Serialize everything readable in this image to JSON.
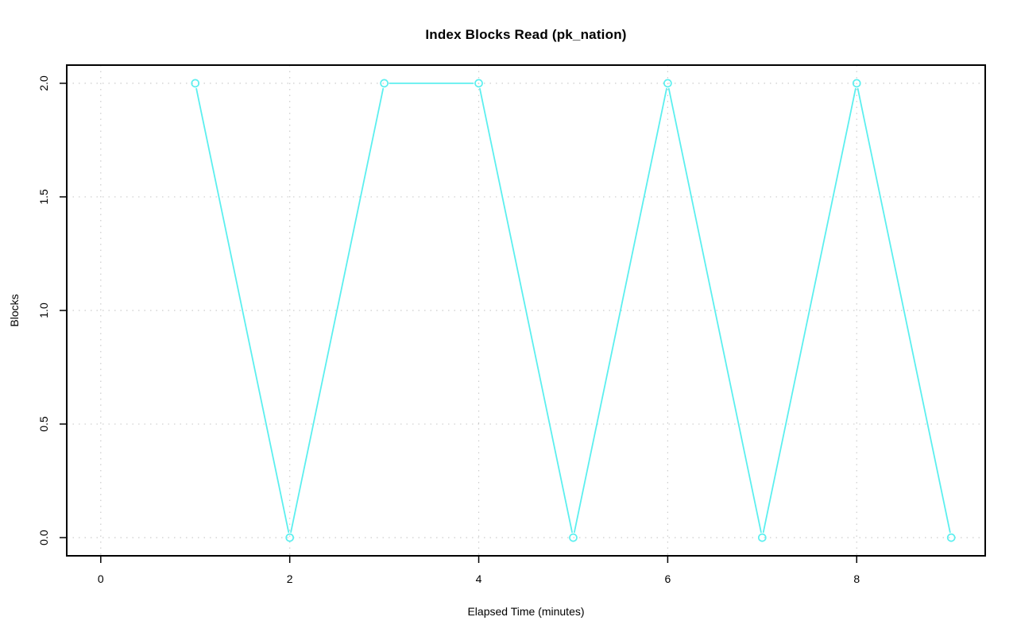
{
  "chart_data": {
    "type": "line",
    "title": "Index Blocks Read (pk_nation)",
    "xlabel": "Elapsed Time (minutes)",
    "ylabel": "Blocks",
    "x": [
      1,
      2,
      3,
      4,
      5,
      6,
      7,
      8,
      9
    ],
    "y": [
      2,
      0,
      2,
      2,
      0,
      2,
      0,
      2,
      0
    ],
    "xlim": [
      -0.36,
      9.36
    ],
    "ylim": [
      -0.08,
      2.08
    ],
    "x_ticks": [
      {
        "value": 0,
        "label": "0"
      },
      {
        "value": 2,
        "label": "2"
      },
      {
        "value": 4,
        "label": "4"
      },
      {
        "value": 6,
        "label": "6"
      },
      {
        "value": 8,
        "label": "8"
      }
    ],
    "y_ticks": [
      {
        "value": 0.0,
        "label": "0.0"
      },
      {
        "value": 0.5,
        "label": "0.5"
      },
      {
        "value": 1.0,
        "label": "1.0"
      },
      {
        "value": 1.5,
        "label": "1.5"
      },
      {
        "value": 2.0,
        "label": "2.0"
      }
    ],
    "grid": "dotted",
    "legend": "none",
    "marker": "open-circle",
    "line_style": "segments-with-marker-gaps",
    "colors": {
      "series": "#5CEFEF",
      "grid": "#cccccc",
      "axis": "#000000",
      "text": "#000000",
      "background": "#ffffff"
    }
  }
}
